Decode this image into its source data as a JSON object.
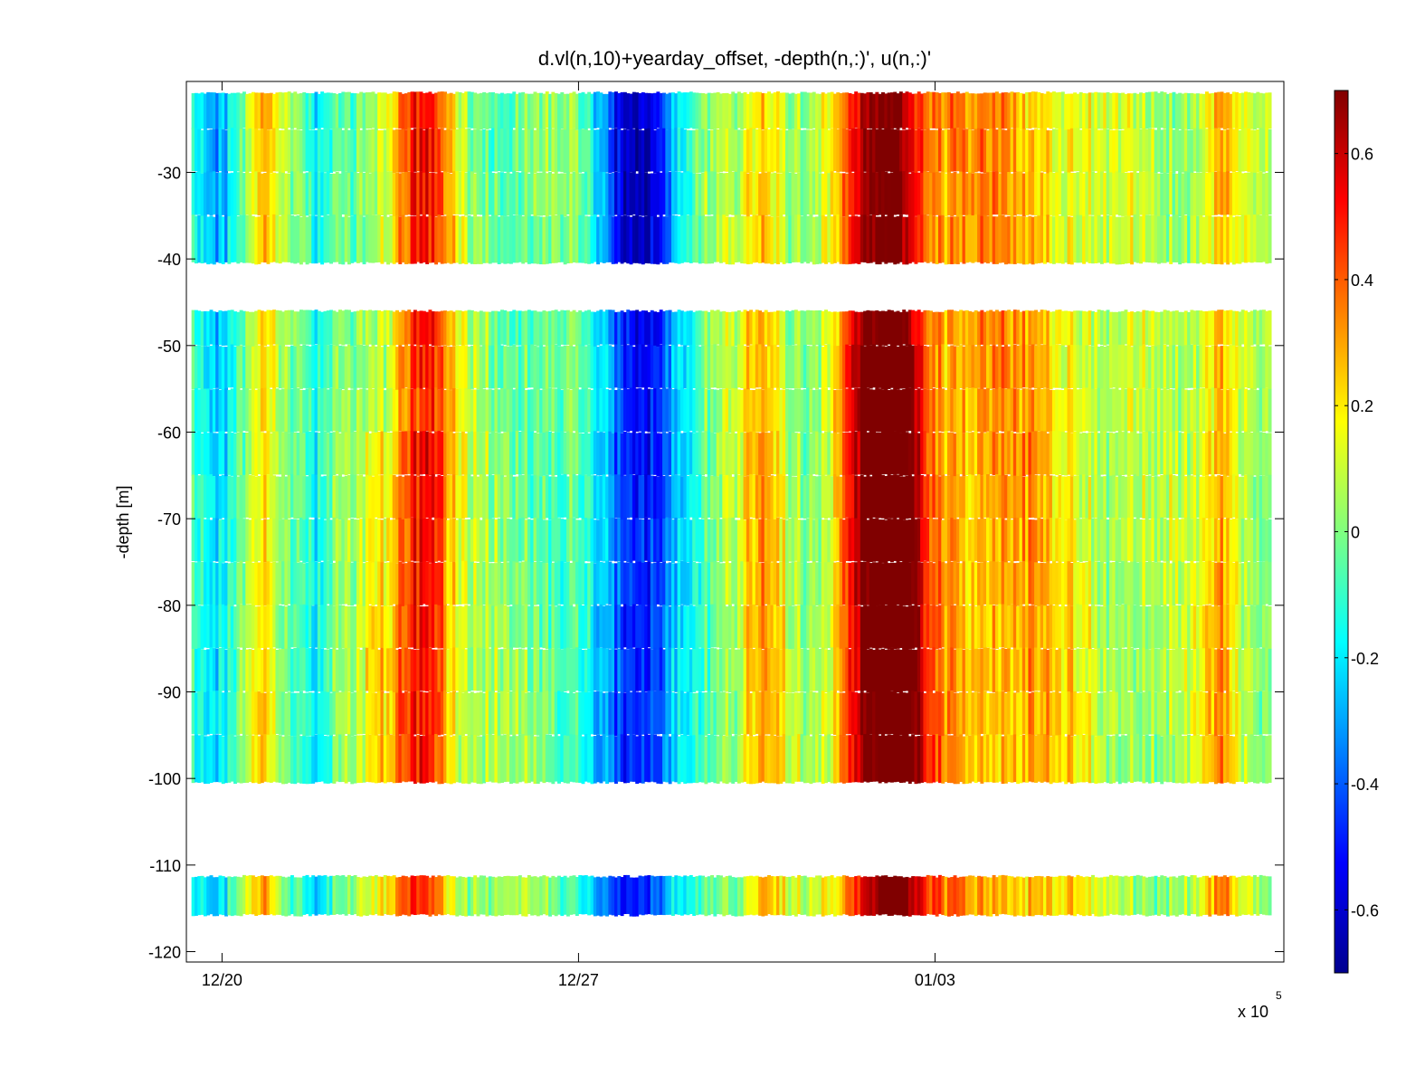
{
  "chart_data": {
    "type": "heatmap",
    "title": "d.vl(n,10)+yearday_offset, -depth(n,:)', u(n,:)'",
    "xlabel": "",
    "ylabel": "-depth [m]",
    "x_multiplier_label": "x 10",
    "x_multiplier_exponent": "5",
    "x_ticks": [
      {
        "label": "12/20",
        "day": 0
      },
      {
        "label": "12/27",
        "day": 7
      },
      {
        "label": "01/03",
        "day": 14
      }
    ],
    "xlim_days": [
      -0.7,
      20.85
    ],
    "ylim": [
      -121.2,
      -19.5
    ],
    "y_ticks": [
      -30,
      -40,
      -50,
      -60,
      -70,
      -80,
      -90,
      -100,
      -110,
      -120
    ],
    "colormap": "jet",
    "colorbar": {
      "clim": [
        -0.7,
        0.7
      ],
      "ticks": [
        0.6,
        0.4,
        0.2,
        0,
        -0.2,
        -0.4,
        -0.6
      ],
      "tick_labels": [
        "0.6",
        "0.4",
        "0.2",
        "0",
        "-0.2",
        "-0.4",
        "-0.6"
      ]
    },
    "grid": false,
    "depth_bins": [
      -22.5,
      -27.5,
      -32.5,
      -37.5,
      -47.5,
      -52.5,
      -57.5,
      -62.5,
      -67.5,
      -72.5,
      -77.5,
      -82.5,
      -87.5,
      -92.5,
      -97.5,
      -113.5
    ],
    "data_bands_m": [
      [
        -40.5,
        -20.8
      ],
      [
        -100.5,
        -46.0
      ],
      [
        -115.8,
        -111.3
      ]
    ],
    "u_features": [
      {
        "day": 3.9,
        "halfwidth": 0.45,
        "amplitude": 0.45
      },
      {
        "day": 8.1,
        "halfwidth": 0.6,
        "amplitude": -0.55
      },
      {
        "day": 12.95,
        "halfwidth": 0.55,
        "amplitude": 0.6
      },
      {
        "day": 14.9,
        "halfwidth": 1.6,
        "amplitude": 0.3
      },
      {
        "day": 10.6,
        "halfwidth": 0.3,
        "amplitude": 0.25
      },
      {
        "day": 19.6,
        "halfwidth": 0.3,
        "amplitude": 0.28
      },
      {
        "day": -0.2,
        "halfwidth": 0.3,
        "amplitude": -0.3
      },
      {
        "day": 1.8,
        "halfwidth": 0.25,
        "amplitude": -0.2
      },
      {
        "day": 0.8,
        "halfwidth": 0.15,
        "amplitude": 0.25
      }
    ]
  }
}
